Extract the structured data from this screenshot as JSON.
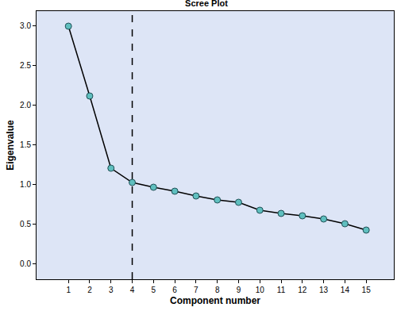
{
  "chart_data": {
    "type": "line",
    "title": "Scree Plot",
    "x_label": "Component number",
    "y_label": "Eigenvalue",
    "x": [
      1,
      2,
      3,
      4,
      5,
      6,
      7,
      8,
      9,
      10,
      11,
      12,
      13,
      14,
      15
    ],
    "values": [
      2.99,
      2.11,
      1.2,
      1.02,
      0.96,
      0.91,
      0.85,
      0.8,
      0.77,
      0.67,
      0.63,
      0.6,
      0.56,
      0.5,
      0.42
    ],
    "color": "#000000",
    "marker": "circle",
    "line_style": "solid",
    "vline": 4,
    "xlim": [
      -0.5,
      16.3
    ],
    "xticks": [
      1,
      2,
      3,
      4,
      5,
      6,
      7,
      8,
      9,
      10,
      11,
      12,
      13,
      14,
      15
    ],
    "ylim": [
      -0.2,
      3.18
    ],
    "yticks": [
      {
        "value": 0,
        "label": "0.0"
      },
      0.5,
      {
        "value": 1,
        "label": "1.0"
      },
      1.5,
      {
        "value": 2,
        "label": "2.0"
      },
      2.5,
      {
        "value": 3,
        "label": "3.0"
      }
    ],
    "grid": false
  }
}
